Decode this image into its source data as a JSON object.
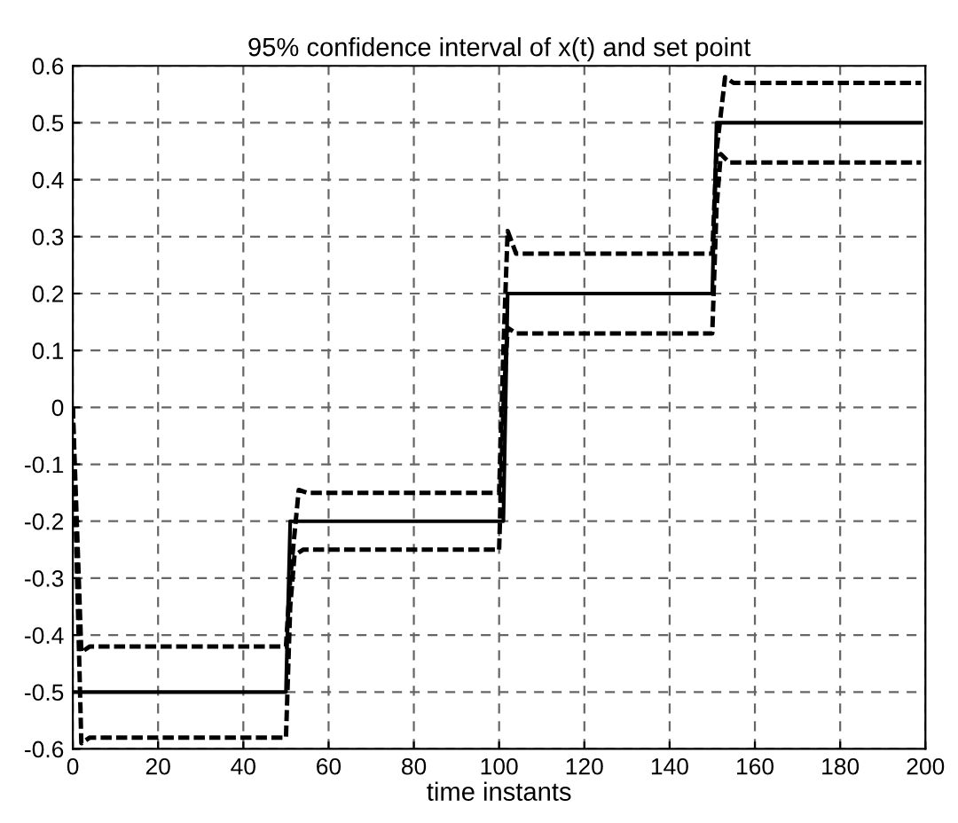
{
  "chart_data": {
    "type": "line",
    "title": "95% confidence interval of x(t) and set point",
    "xlabel": "time instants",
    "xlim": [
      0,
      200
    ],
    "xticks": [
      0,
      20,
      40,
      60,
      80,
      100,
      120,
      140,
      160,
      180,
      200
    ],
    "ylim": [
      -0.6,
      0.6
    ],
    "yticks": [
      {
        "value": -0.6,
        "label": "-0.6"
      },
      {
        "value": -0.5,
        "label": "-0.5"
      },
      {
        "value": -0.4,
        "label": "-0.4"
      },
      {
        "value": -0.3,
        "label": "-0.3"
      },
      {
        "value": -0.2,
        "label": "-0.2"
      },
      {
        "value": -0.1,
        "label": "-0.1"
      },
      0,
      0.1,
      0.2,
      0.3,
      0.4,
      0.5,
      0.6
    ],
    "grid": true,
    "marker": "none",
    "series": [
      {
        "color": "#000000",
        "line_style": "solid",
        "x": [
          0,
          50,
          51,
          101,
          102,
          150,
          151,
          199
        ],
        "values": [
          -0.5,
          -0.5,
          -0.2,
          -0.2,
          0.2,
          0.2,
          0.5,
          0.5
        ]
      },
      {
        "color": "#000000",
        "line_style": "dashed",
        "x": [
          0,
          2,
          4,
          50,
          51,
          53,
          55,
          100,
          101,
          102,
          104,
          150,
          151,
          153,
          155,
          199
        ],
        "values": [
          0,
          -0.43,
          -0.42,
          -0.42,
          -0.3,
          -0.145,
          -0.15,
          -0.15,
          0.1,
          0.31,
          0.27,
          0.27,
          0.45,
          0.58,
          0.57,
          0.57
        ]
      },
      {
        "color": "#000000",
        "line_style": "dashed",
        "x": [
          0,
          2,
          4,
          50,
          51,
          52,
          54,
          100,
          101,
          102,
          104,
          150,
          151,
          152,
          154,
          199
        ],
        "values": [
          0,
          -0.59,
          -0.58,
          -0.58,
          -0.35,
          -0.26,
          -0.25,
          -0.25,
          0.0,
          0.14,
          0.13,
          0.13,
          0.35,
          0.445,
          0.43,
          0.43
        ]
      }
    ]
  }
}
